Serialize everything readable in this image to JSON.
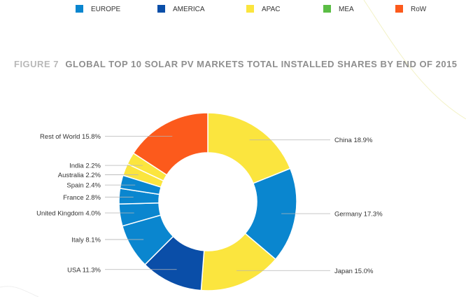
{
  "legend": [
    {
      "label": "EUROPE",
      "color": "#0a86cf"
    },
    {
      "label": "AMERICA",
      "color": "#0a4ea8"
    },
    {
      "label": "APAC",
      "color": "#fbe53e"
    },
    {
      "label": "MEA",
      "color": "#5bbd45"
    },
    {
      "label": "RoW",
      "color": "#fc5a1c"
    }
  ],
  "title_prefix": "FIGURE 7",
  "title": "GLOBAL TOP 10 SOLAR PV MARKETS TOTAL INSTALLED SHARES BY END OF 2015",
  "chart_data": {
    "type": "pie",
    "donut": true,
    "unit": "%",
    "title": "FIGURE 7 GLOBAL TOP 10 SOLAR PV MARKETS TOTAL INSTALLED SHARES BY END OF 2015",
    "legend_position": "top",
    "slices": [
      {
        "label": "China 18.9%",
        "name": "China",
        "value": 18.9,
        "group": "APAC",
        "color": "#fbe53e"
      },
      {
        "label": "Germany 17.3%",
        "name": "Germany",
        "value": 17.3,
        "group": "EUROPE",
        "color": "#0a86cf"
      },
      {
        "label": "Japan 15.0%",
        "name": "Japan",
        "value": 15.0,
        "group": "APAC",
        "color": "#fbe53e"
      },
      {
        "label": "USA 11.3%",
        "name": "USA",
        "value": 11.3,
        "group": "AMERICA",
        "color": "#0a4ea8"
      },
      {
        "label": "Italy 8.1%",
        "name": "Italy",
        "value": 8.1,
        "group": "EUROPE",
        "color": "#0a86cf"
      },
      {
        "label": "United Kingdom 4.0%",
        "name": "United Kingdom",
        "value": 4.0,
        "group": "EUROPE",
        "color": "#0a86cf"
      },
      {
        "label": "France 2.8%",
        "name": "France",
        "value": 2.8,
        "group": "EUROPE",
        "color": "#0a86cf"
      },
      {
        "label": "Spain 2.4%",
        "name": "Spain",
        "value": 2.4,
        "group": "EUROPE",
        "color": "#0a86cf"
      },
      {
        "label": "Australia 2.2%",
        "name": "Australia",
        "value": 2.2,
        "group": "APAC",
        "color": "#fbe53e"
      },
      {
        "label": "India 2.2%",
        "name": "India",
        "value": 2.2,
        "group": "APAC",
        "color": "#fbe53e"
      },
      {
        "label": "Rest of World 15.8%",
        "name": "Rest of World",
        "value": 15.8,
        "group": "RoW",
        "color": "#fc5a1c"
      }
    ]
  }
}
